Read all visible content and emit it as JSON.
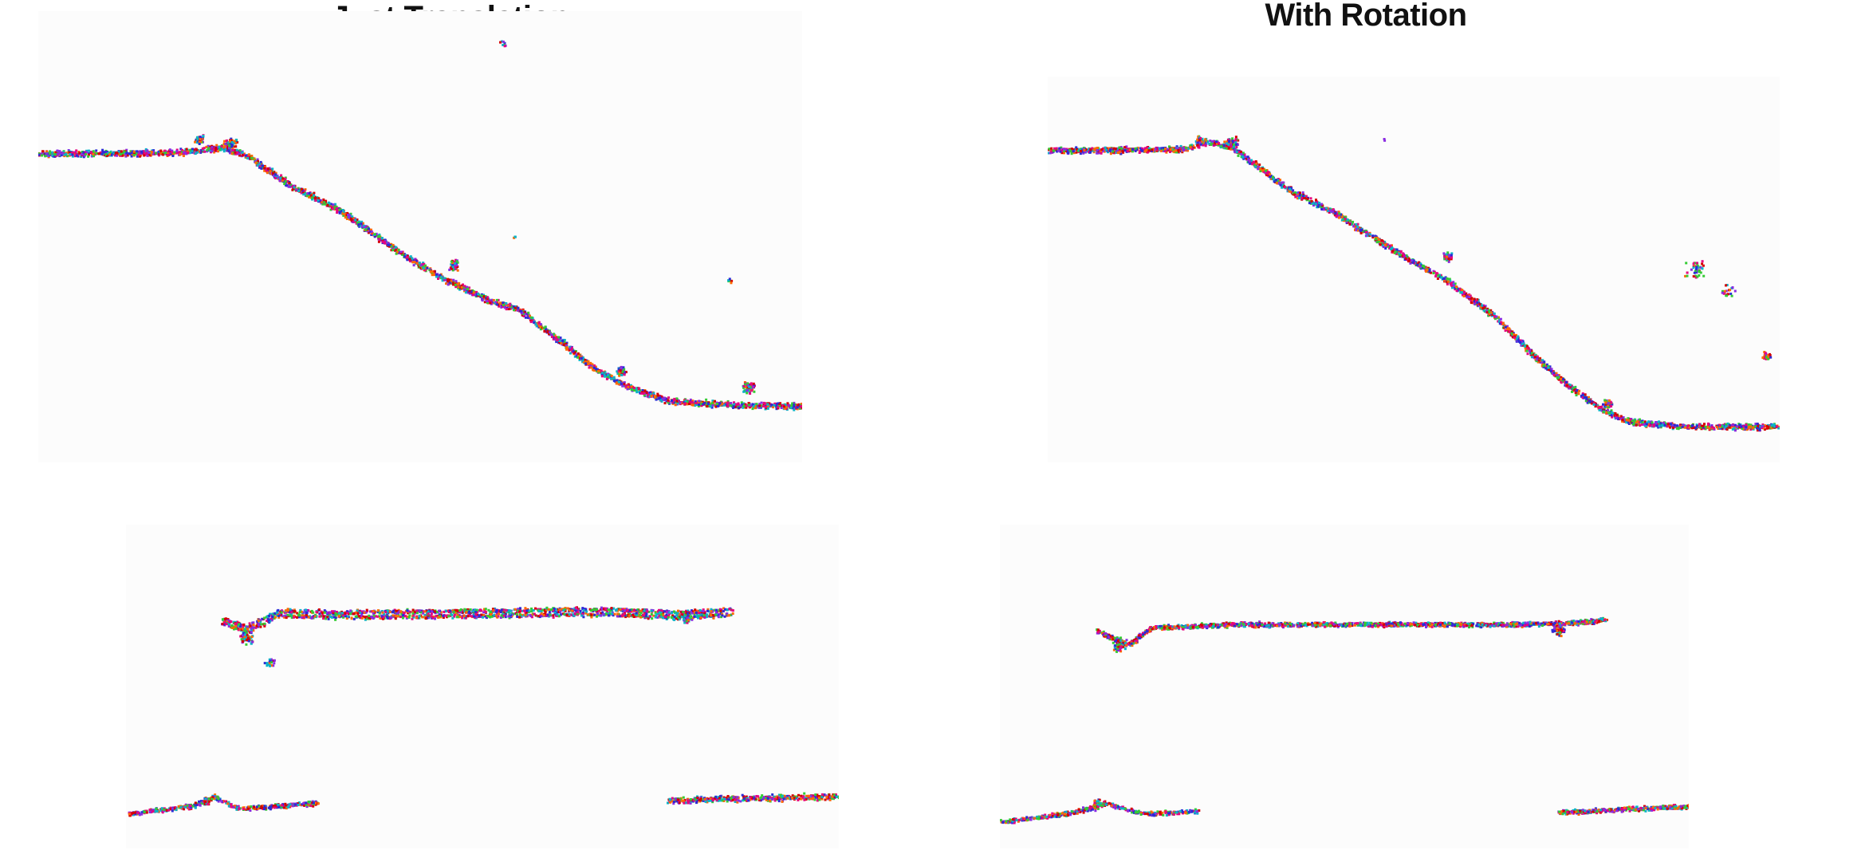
{
  "titles": {
    "left": "Just Translation",
    "right": "With Rotation"
  },
  "point_colors": [
    "#e6007e",
    "#2b2bd6",
    "#0ab4c8",
    "#33cc33",
    "#8a2be2",
    "#ff6a00",
    "#d40000"
  ],
  "description_note": "Four point-cloud panels: top row shows a descending slope profile, bottom row shows flat profile segments; left column Just Translation, right column With Rotation."
}
